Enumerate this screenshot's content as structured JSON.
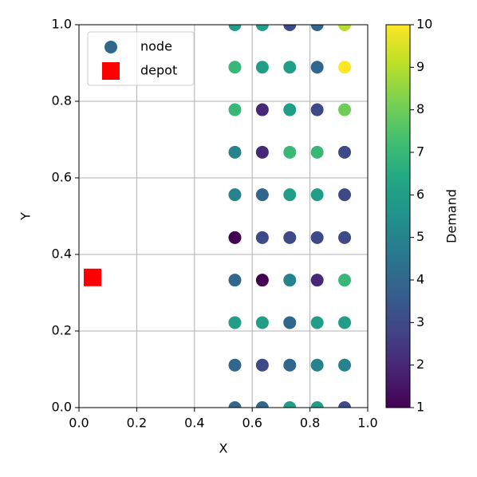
{
  "chart_data": {
    "type": "scatter",
    "xlabel": "X",
    "ylabel": "Y",
    "xlim": [
      0,
      1
    ],
    "ylim": [
      0,
      1
    ],
    "xticks": [
      {
        "value": 0,
        "label": "0.0"
      },
      {
        "value": 0.2,
        "label": "0.2"
      },
      {
        "value": 0.4,
        "label": "0.4"
      },
      {
        "value": 0.6,
        "label": "0.6"
      },
      {
        "value": 0.8,
        "label": "0.8"
      },
      {
        "value": 1,
        "label": "1.0"
      }
    ],
    "yticks": [
      {
        "value": 0,
        "label": "0.0"
      },
      {
        "value": 0.2,
        "label": "0.2"
      },
      {
        "value": 0.4,
        "label": "0.4"
      },
      {
        "value": 0.6,
        "label": "0.6"
      },
      {
        "value": 0.8,
        "label": "0.8"
      },
      {
        "value": 1,
        "label": "1.0"
      }
    ],
    "grid": true,
    "legend": "upper left",
    "colormap": "viridis",
    "colorbar_label": "Demand",
    "clim": [
      1,
      10
    ],
    "colorbar_ticks": [
      1,
      2,
      3,
      4,
      5,
      6,
      7,
      8,
      9,
      10
    ],
    "series": [
      {
        "name": "node",
        "marker": "circle",
        "x": [
          0.54,
          0.635,
          0.73,
          0.825,
          0.92,
          0.54,
          0.635,
          0.73,
          0.825,
          0.92,
          0.54,
          0.635,
          0.73,
          0.825,
          0.92,
          0.54,
          0.635,
          0.73,
          0.825,
          0.92,
          0.54,
          0.635,
          0.73,
          0.825,
          0.92,
          0.54,
          0.635,
          0.73,
          0.825,
          0.92,
          0.54,
          0.635,
          0.73,
          0.825,
          0.92,
          0.54,
          0.635,
          0.73,
          0.825,
          0.92,
          0.54,
          0.635,
          0.73,
          0.825,
          0.92,
          0.54,
          0.635,
          0.73,
          0.825,
          0.92
        ],
        "y": [
          0,
          0,
          0,
          0,
          0,
          0.111,
          0.111,
          0.111,
          0.111,
          0.111,
          0.222,
          0.222,
          0.222,
          0.222,
          0.222,
          0.333,
          0.333,
          0.333,
          0.333,
          0.333,
          0.444,
          0.444,
          0.444,
          0.444,
          0.444,
          0.556,
          0.556,
          0.556,
          0.556,
          0.556,
          0.667,
          0.667,
          0.667,
          0.667,
          0.667,
          0.778,
          0.778,
          0.778,
          0.778,
          0.778,
          0.889,
          0.889,
          0.889,
          0.889,
          0.889,
          1,
          1,
          1,
          1,
          1
        ],
        "c": [
          4,
          4,
          6,
          6,
          3,
          4,
          3,
          4,
          5,
          5,
          6,
          6,
          4,
          6,
          6,
          4,
          1,
          5,
          2,
          7,
          1,
          3,
          3,
          3,
          3,
          5,
          4,
          6,
          6,
          3,
          5,
          2,
          7,
          7,
          3,
          7,
          2,
          6,
          3,
          8,
          7,
          6,
          6,
          4,
          10,
          6,
          6,
          3,
          4,
          9
        ]
      },
      {
        "name": "depot",
        "marker": "square",
        "color": "#ff0000",
        "x": [
          0.047
        ],
        "y": [
          0.34
        ]
      }
    ]
  }
}
